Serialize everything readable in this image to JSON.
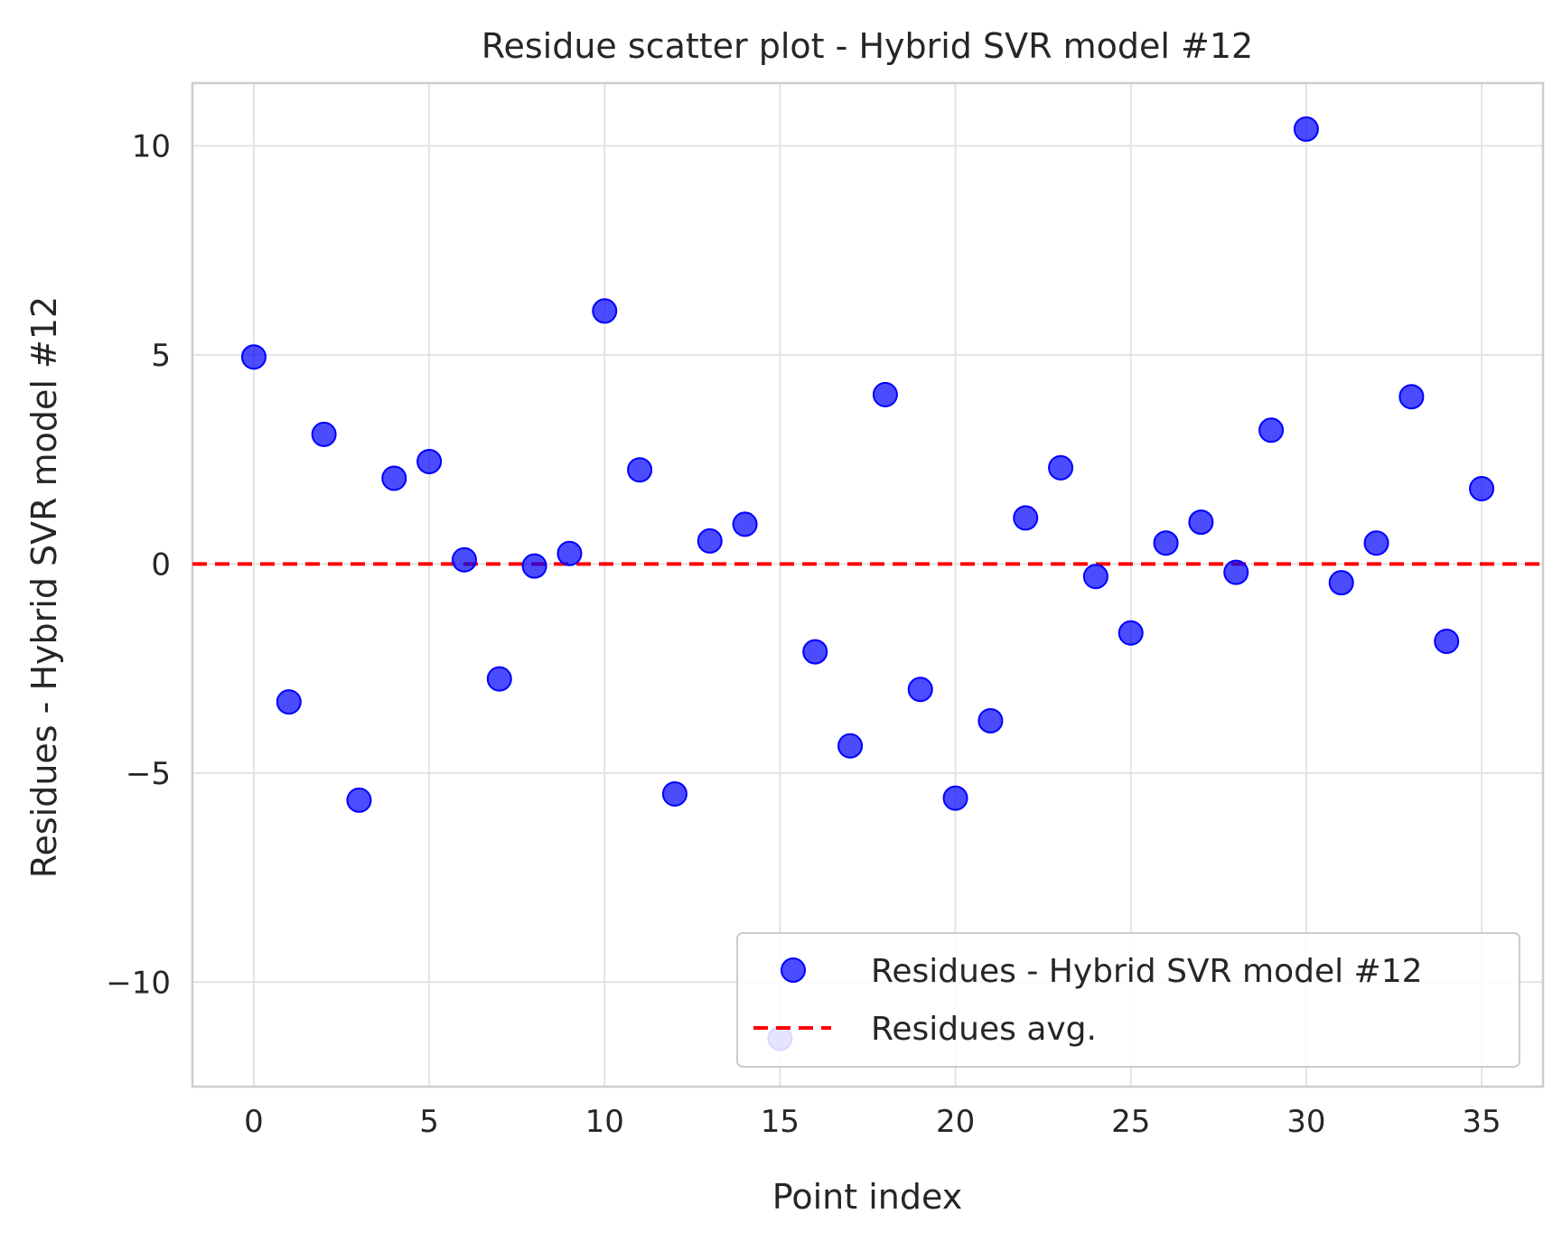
{
  "chart_data": {
    "type": "scatter",
    "title": "Residue scatter plot - Hybrid SVR model #12",
    "xlabel": "Point index",
    "ylabel": "Residues - Hybrid SVR model #12",
    "xlim": [
      -1.75,
      36.75
    ],
    "ylim": [
      -12.5,
      11.5
    ],
    "x_ticks": [
      0,
      5,
      10,
      15,
      20,
      25,
      30,
      35
    ],
    "x_tick_labels": [
      "0",
      "5",
      "10",
      "15",
      "20",
      "25",
      "30",
      "35"
    ],
    "y_ticks": [
      10,
      5,
      0,
      -5,
      -10
    ],
    "y_tick_labels": [
      "10",
      "5",
      "0",
      "−5",
      "−10"
    ],
    "grid": true,
    "legend_position": "lower-right",
    "series": [
      {
        "name": "Residues - Hybrid SVR model #12",
        "kind": "scatter",
        "color": "#0000ff",
        "x": [
          0,
          1,
          2,
          3,
          4,
          5,
          6,
          7,
          8,
          9,
          10,
          11,
          12,
          13,
          14,
          15,
          16,
          17,
          18,
          19,
          20,
          21,
          22,
          23,
          24,
          25,
          26,
          27,
          28,
          29,
          30,
          31,
          32,
          33,
          34,
          35
        ],
        "y": [
          4.95,
          -3.3,
          3.1,
          -5.65,
          2.05,
          2.45,
          0.1,
          -2.75,
          -0.05,
          0.25,
          6.05,
          2.25,
          -5.5,
          0.55,
          0.95,
          -11.35,
          -2.1,
          -4.35,
          4.05,
          -3.0,
          -5.6,
          -3.75,
          1.1,
          2.3,
          -0.3,
          -1.65,
          0.5,
          1.0,
          -0.2,
          3.2,
          10.4,
          -0.45,
          0.5,
          4.0,
          -1.85,
          1.8
        ]
      },
      {
        "name": "Residues avg.",
        "kind": "hline",
        "color": "#ff0000",
        "y": 0
      }
    ]
  }
}
